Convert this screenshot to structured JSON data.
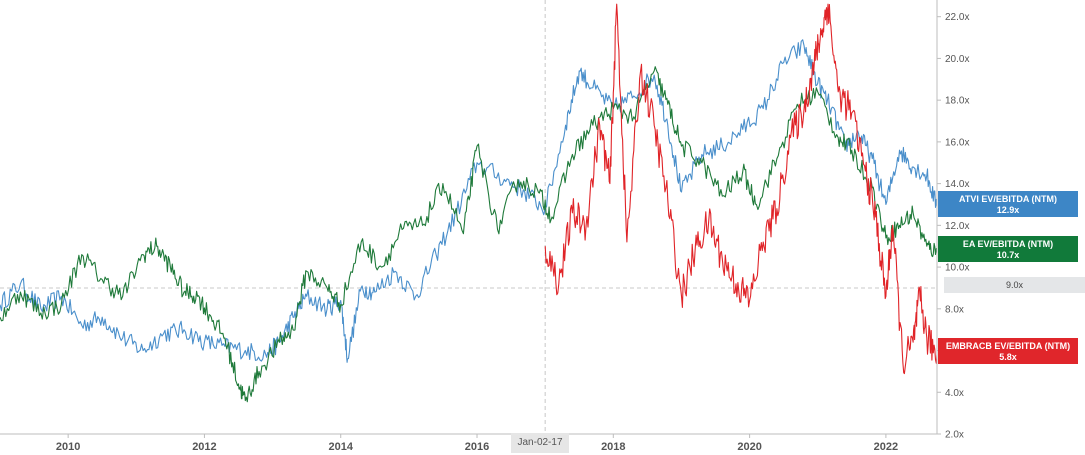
{
  "chart_data": {
    "type": "line",
    "title": "",
    "xlabel": "",
    "ylabel": "",
    "x_range": [
      2009.0,
      2022.75
    ],
    "ylim": [
      2.0,
      22.8
    ],
    "x_ticks": [
      "2010",
      "2012",
      "2014",
      "2016",
      "2018",
      "2020",
      "2022"
    ],
    "y_ticks": [
      "2.0x",
      "4.0x",
      "6.0x",
      "8.0x",
      "10.0x",
      "12.0x",
      "14.0x",
      "16.0x",
      "18.0x",
      "20.0x",
      "22.0x"
    ],
    "grid": false,
    "reference_line": {
      "value": 9.0,
      "label": "9.0x"
    },
    "crosshair": {
      "x": 2017.0,
      "label": "Jan-02-17"
    },
    "series": [
      {
        "name": "ATVI EV/EBITDA (NTM)",
        "last_label": "12.9x",
        "color": "#4a8fcb",
        "x": [
          2009.0,
          2009.3,
          2009.6,
          2009.9,
          2010.2,
          2010.5,
          2010.8,
          2011.1,
          2011.4,
          2011.7,
          2012.0,
          2012.3,
          2012.6,
          2012.9,
          2013.1,
          2013.3,
          2013.5,
          2013.8,
          2014.0,
          2014.1,
          2014.3,
          2014.5,
          2014.8,
          2015.1,
          2015.4,
          2015.7,
          2016.0,
          2016.4,
          2016.7,
          2017.0,
          2017.3,
          2017.5,
          2017.7,
          2018.0,
          2018.3,
          2018.6,
          2018.8,
          2019.0,
          2019.3,
          2019.6,
          2019.9,
          2020.2,
          2020.5,
          2020.8,
          2021.0,
          2021.2,
          2021.4,
          2021.6,
          2021.8,
          2022.0,
          2022.2,
          2022.4,
          2022.6,
          2022.75
        ],
        "values": [
          8.2,
          9.2,
          8.0,
          8.6,
          7.2,
          7.6,
          6.6,
          6.0,
          6.8,
          7.0,
          6.4,
          6.2,
          6.0,
          5.8,
          6.4,
          7.6,
          8.6,
          8.0,
          8.4,
          5.6,
          9.0,
          8.8,
          9.8,
          8.6,
          10.6,
          12.6,
          15.0,
          14.2,
          13.6,
          12.8,
          16.8,
          19.4,
          18.6,
          17.6,
          18.2,
          19.2,
          16.8,
          13.6,
          15.4,
          15.8,
          16.6,
          17.6,
          19.8,
          20.6,
          18.8,
          17.6,
          15.8,
          16.4,
          15.2,
          13.0,
          15.6,
          14.8,
          14.4,
          12.9
        ]
      },
      {
        "name": "EA EV/EBITDA (NTM)",
        "last_label": "10.7x",
        "color": "#1f7a3a",
        "x": [
          2009.0,
          2009.3,
          2009.6,
          2009.9,
          2010.2,
          2010.5,
          2010.8,
          2011.1,
          2011.3,
          2011.5,
          2011.7,
          2011.9,
          2012.1,
          2012.3,
          2012.5,
          2012.6,
          2012.8,
          2013.1,
          2013.3,
          2013.5,
          2013.8,
          2014.0,
          2014.3,
          2014.6,
          2014.9,
          2015.2,
          2015.5,
          2015.8,
          2016.0,
          2016.3,
          2016.6,
          2016.9,
          2017.1,
          2017.4,
          2017.7,
          2018.0,
          2018.3,
          2018.6,
          2018.8,
          2019.0,
          2019.3,
          2019.6,
          2019.9,
          2020.1,
          2020.4,
          2020.7,
          2021.0,
          2021.3,
          2021.5,
          2021.8,
          2022.0,
          2022.2,
          2022.4,
          2022.6,
          2022.75
        ],
        "values": [
          7.6,
          8.8,
          7.8,
          8.2,
          10.6,
          9.4,
          8.6,
          10.6,
          11.0,
          10.0,
          8.8,
          8.6,
          7.6,
          6.6,
          4.4,
          3.6,
          5.0,
          6.4,
          7.0,
          9.8,
          9.0,
          8.2,
          11.2,
          10.0,
          11.8,
          12.0,
          14.0,
          11.6,
          15.8,
          11.8,
          14.2,
          13.6,
          12.4,
          15.4,
          16.8,
          17.6,
          17.2,
          19.4,
          17.8,
          15.8,
          15.0,
          13.4,
          14.6,
          13.0,
          15.2,
          17.8,
          18.4,
          16.2,
          15.6,
          13.8,
          11.4,
          12.0,
          12.6,
          11.0,
          10.7
        ]
      },
      {
        "name": "EMBRACB EV/EBITDA (NTM)",
        "last_label": "5.8x",
        "color": "#e02428",
        "x": [
          2017.0,
          2017.2,
          2017.4,
          2017.6,
          2017.8,
          2017.95,
          2018.05,
          2018.2,
          2018.4,
          2018.6,
          2018.8,
          2019.0,
          2019.2,
          2019.4,
          2019.6,
          2019.8,
          2020.0,
          2020.2,
          2020.4,
          2020.6,
          2020.8,
          2020.95,
          2021.05,
          2021.15,
          2021.3,
          2021.5,
          2021.7,
          2021.85,
          2022.0,
          2022.1,
          2022.25,
          2022.4,
          2022.5,
          2022.6,
          2022.75
        ],
        "values": [
          11.0,
          9.2,
          12.6,
          12.0,
          16.8,
          14.0,
          22.6,
          11.2,
          19.4,
          16.8,
          13.2,
          8.6,
          10.8,
          12.2,
          10.4,
          9.2,
          8.4,
          11.2,
          12.8,
          16.2,
          17.6,
          19.8,
          21.2,
          22.6,
          18.4,
          17.4,
          14.6,
          12.4,
          8.6,
          12.0,
          5.4,
          6.4,
          8.6,
          6.6,
          5.8
        ]
      }
    ]
  }
}
